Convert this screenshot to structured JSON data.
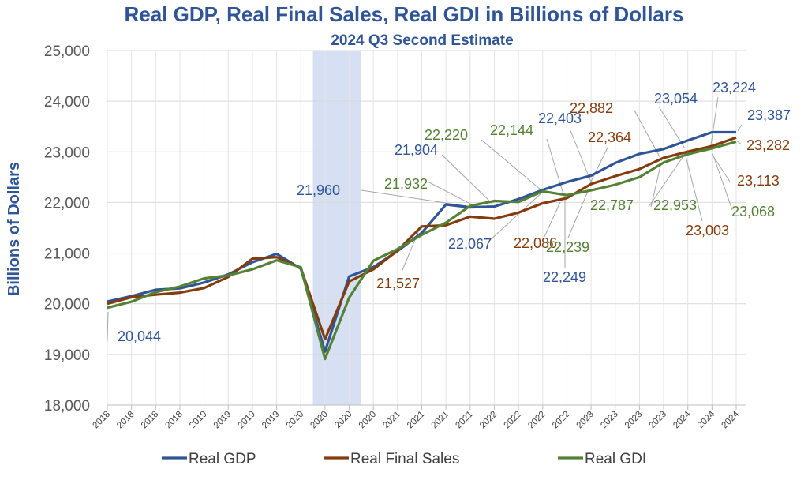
{
  "chart_data": {
    "type": "line",
    "title": "Real GDP, Real Final Sales, Real GDI in Billions of Dollars",
    "subtitle": "2024 Q3 Second Estimate",
    "ylabel": "Billions of Dollars",
    "xlabel": "",
    "ylim": [
      18000,
      25000
    ],
    "yticks": [
      18000,
      19000,
      20000,
      21000,
      22000,
      23000,
      24000,
      25000
    ],
    "ytick_labels": [
      "18,000",
      "19,000",
      "20,000",
      "21,000",
      "22,000",
      "23,000",
      "24,000",
      "25,000"
    ],
    "categories": [
      "2018",
      "2018",
      "2018",
      "2018",
      "2019",
      "2019",
      "2019",
      "2019",
      "2020",
      "2020",
      "2020",
      "2020",
      "2021",
      "2021",
      "2021",
      "2021",
      "2022",
      "2022",
      "2022",
      "2022",
      "2023",
      "2023",
      "2023",
      "2023",
      "2024",
      "2024",
      "2024"
    ],
    "recession_band": {
      "from_index": 8.5,
      "to_index": 10.5
    },
    "grid": true,
    "legend_position": "bottom",
    "series": [
      {
        "name": "Real GDP",
        "color": "#2f5597",
        "values": [
          20044,
          20150,
          20276,
          20304,
          20420,
          20580,
          20820,
          20985,
          20694,
          19056,
          20540,
          20724,
          21040,
          21400,
          21960,
          21904,
          21920,
          22067,
          22249,
          22403,
          22531,
          22780,
          22960,
          23054,
          23224,
          23387,
          23387
        ]
      },
      {
        "name": "Real Final Sales",
        "color": "#843c0c",
        "values": [
          20000,
          20130,
          20180,
          20220,
          20310,
          20530,
          20890,
          20920,
          20710,
          19300,
          20440,
          20680,
          21050,
          21527,
          21550,
          21720,
          21680,
          21800,
          21985,
          22086,
          22364,
          22520,
          22660,
          22882,
          23003,
          23113,
          23282
        ]
      },
      {
        "name": "Real GDI",
        "color": "#548235",
        "values": [
          19920,
          20040,
          20230,
          20340,
          20500,
          20560,
          20680,
          20860,
          20720,
          18910,
          20120,
          20850,
          21080,
          21360,
          21600,
          21932,
          22030,
          22010,
          22220,
          22144,
          22239,
          22350,
          22500,
          22787,
          22953,
          23068,
          23200
        ]
      }
    ],
    "annotations": [
      {
        "text": "20,044",
        "series": "Real GDP"
      },
      {
        "text": "21,960",
        "series": "Real GDP"
      },
      {
        "text": "21,904",
        "series": "Real GDP"
      },
      {
        "text": "22,067",
        "series": "Real GDP"
      },
      {
        "text": "22,249",
        "series": "Real GDP"
      },
      {
        "text": "22,403",
        "series": "Real GDP"
      },
      {
        "text": "23,054",
        "series": "Real GDP"
      },
      {
        "text": "23,224",
        "series": "Real GDP"
      },
      {
        "text": "23,387",
        "series": "Real GDP"
      },
      {
        "text": "21,527",
        "series": "Real Final Sales"
      },
      {
        "text": "22,086",
        "series": "Real Final Sales"
      },
      {
        "text": "22,364",
        "series": "Real Final Sales"
      },
      {
        "text": "22,882",
        "series": "Real Final Sales"
      },
      {
        "text": "23,003",
        "series": "Real Final Sales"
      },
      {
        "text": "23,113",
        "series": "Real Final Sales"
      },
      {
        "text": "23,282",
        "series": "Real Final Sales"
      },
      {
        "text": "21,932",
        "series": "Real GDI"
      },
      {
        "text": "22,220",
        "series": "Real GDI"
      },
      {
        "text": "22,144",
        "series": "Real GDI"
      },
      {
        "text": "22,239",
        "series": "Real GDI"
      },
      {
        "text": "22,787",
        "series": "Real GDI"
      },
      {
        "text": "22,953",
        "series": "Real GDI"
      },
      {
        "text": "23,068",
        "series": "Real GDI"
      }
    ]
  }
}
